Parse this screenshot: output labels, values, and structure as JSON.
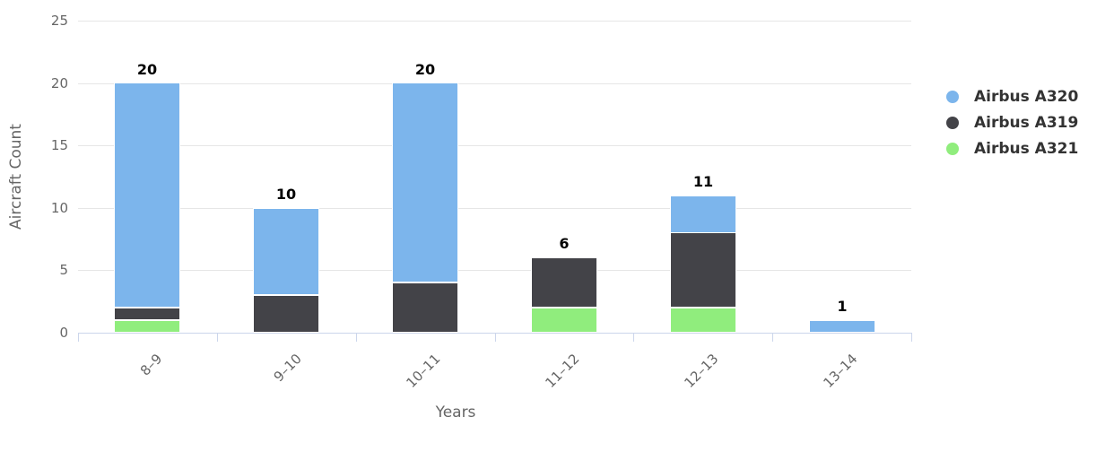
{
  "chart_data": {
    "type": "bar",
    "variant": "stacked-column",
    "title": "",
    "xlabel": "Years",
    "ylabel": "Aircraft Count",
    "categories": [
      "8–9",
      "9–10",
      "10–11",
      "11–12",
      "12–13",
      "13–14"
    ],
    "series": [
      {
        "name": "Airbus A320",
        "color": "#7cb5ec",
        "values": [
          18,
          7,
          16,
          0,
          3,
          1
        ]
      },
      {
        "name": "Airbus A319",
        "color": "#434348",
        "values": [
          1,
          3,
          4,
          4,
          6,
          0
        ]
      },
      {
        "name": "Airbus A321",
        "color": "#90ed7d",
        "values": [
          1,
          0,
          0,
          2,
          2,
          0
        ]
      }
    ],
    "stack_order_bottom_to_top": [
      "Airbus A321",
      "Airbus A319",
      "Airbus A320"
    ],
    "stack_totals": [
      20,
      10,
      20,
      6,
      11,
      1
    ],
    "yticks": [
      0,
      5,
      10,
      15,
      20,
      25
    ],
    "ylim": [
      0,
      25
    ],
    "grid": true,
    "legend": {
      "position": "right",
      "layout": "vertical",
      "items": [
        "Airbus A320",
        "Airbus A319",
        "Airbus A321"
      ]
    }
  },
  "style_colors": {
    "background": "#ffffff",
    "grid_line": "#e6e6e6",
    "axis_line": "#ccd6eb",
    "tick_mark": "#ccd6eb",
    "axis_label_text": "#666666",
    "axis_title_text": "#666666",
    "legend_text": "#333333",
    "data_label_text": "#000000",
    "segment_border": "#ffffff"
  }
}
